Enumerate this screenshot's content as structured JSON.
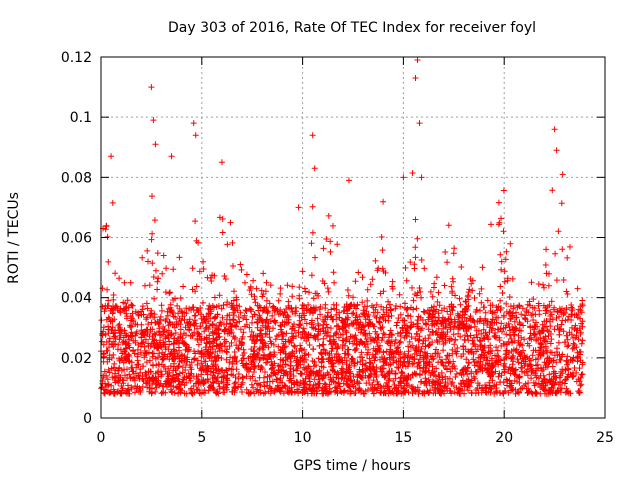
{
  "chart_data": {
    "type": "scatter",
    "title": "Day 303 of 2016, Rate Of TEC Index for receiver foyl",
    "xlabel": "GPS time / hours",
    "ylabel": "ROTI / TECUs",
    "xlim": [
      0,
      25
    ],
    "ylim": [
      0,
      0.12
    ],
    "x_ticks": [
      0,
      5,
      10,
      15,
      20,
      25
    ],
    "x_tick_labels": [
      "0",
      "5",
      "10",
      "15",
      "20",
      "25"
    ],
    "y_ticks": [
      0,
      0.02,
      0.04,
      0.06,
      0.08,
      0.1,
      0.12
    ],
    "y_tick_labels": [
      "0",
      "0.02",
      "0.04",
      "0.06",
      "0.08",
      "0.1",
      "0.12"
    ],
    "grid": true,
    "marker": "plus",
    "marker_color": "#ff0000",
    "series": [
      {
        "name": "ROTI",
        "data_range": {
          "x": [
            0,
            23.9
          ],
          "y": [
            0.003,
            0.119
          ]
        },
        "typical_band": [
          0.008,
          0.035
        ],
        "sample_points": [
          [
            0.1,
            0.063
          ],
          [
            0.5,
            0.087
          ],
          [
            2.5,
            0.11
          ],
          [
            2.6,
            0.099
          ],
          [
            2.7,
            0.091
          ],
          [
            3.5,
            0.087
          ],
          [
            4.6,
            0.098
          ],
          [
            4.7,
            0.094
          ],
          [
            6.0,
            0.085
          ],
          [
            9.8,
            0.07
          ],
          [
            10.5,
            0.094
          ],
          [
            10.6,
            0.083
          ],
          [
            12.3,
            0.079
          ],
          [
            15.0,
            0.08
          ],
          [
            15.7,
            0.119
          ],
          [
            15.6,
            0.113
          ],
          [
            15.8,
            0.098
          ],
          [
            15.9,
            0.08
          ],
          [
            22.5,
            0.096
          ],
          [
            22.6,
            0.089
          ],
          [
            22.9,
            0.081
          ]
        ]
      }
    ]
  }
}
